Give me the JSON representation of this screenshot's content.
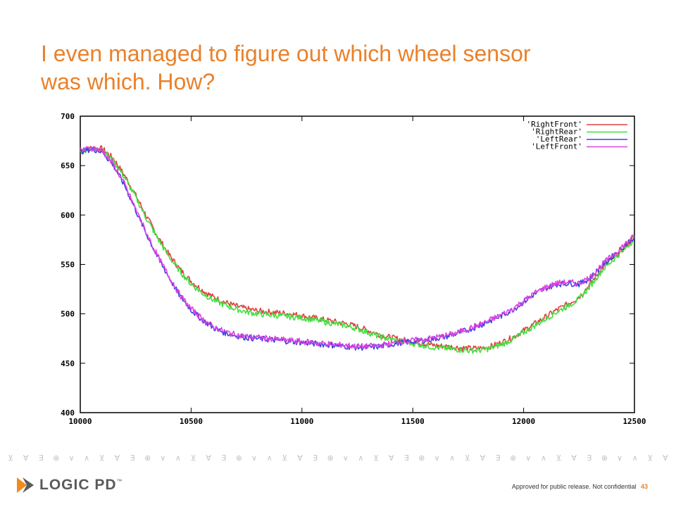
{
  "slide": {
    "title_lines": [
      "I even managed to figure out which wheel sensor",
      "was which. How?"
    ],
    "footer_text": "Approved for public release. Not confidential",
    "page_number": "43",
    "logo_text": "LOGIC PD",
    "logo_tm": "™",
    "symbols": [
      "⊻",
      "∀",
      "∃",
      "⊕",
      "∨",
      "∧",
      "⊻",
      "∀",
      "∃",
      "⊕",
      "∨",
      "∧",
      "⊻",
      "∀",
      "∃",
      "⊕",
      "∨",
      "∧",
      "⊻",
      "∀",
      "∃",
      "⊕",
      "∨",
      "∧",
      "⊻",
      "∀",
      "∃",
      "⊕",
      "∨",
      "∧",
      "⊻",
      "∀",
      "∃",
      "⊕",
      "∨",
      "∧",
      "⊻",
      "∀",
      "∃",
      "⊕",
      "∨",
      "∧",
      "⊻",
      "∀"
    ],
    "colors": {
      "accent": "#e9812b",
      "logo_grey": "#5a5a5a"
    }
  },
  "chart_data": {
    "type": "line",
    "title": "",
    "xlabel": "",
    "ylabel": "",
    "xlim": [
      10000,
      12500
    ],
    "ylim": [
      400,
      700
    ],
    "xticks": [
      10000,
      10500,
      11000,
      11500,
      12000,
      12500
    ],
    "yticks": [
      400,
      450,
      500,
      550,
      600,
      650,
      700
    ],
    "legend_position": "top-right",
    "series": [
      {
        "name": "'RightFront'",
        "color": "#e04040",
        "x": [
          10000,
          10050,
          10100,
          10150,
          10200,
          10250,
          10300,
          10350,
          10400,
          10450,
          10500,
          10550,
          10600,
          10650,
          10700,
          10750,
          10800,
          10850,
          10900,
          10950,
          11000,
          11050,
          11100,
          11150,
          11200,
          11250,
          11300,
          11350,
          11400,
          11450,
          11500,
          11550,
          11600,
          11650,
          11700,
          11750,
          11800,
          11850,
          11900,
          11950,
          12000,
          12050,
          12100,
          12150,
          12200,
          12250,
          12300,
          12350,
          12400,
          12450,
          12500
        ],
        "y": [
          665,
          668,
          667,
          657,
          640,
          620,
          598,
          578,
          560,
          545,
          533,
          524,
          517,
          512,
          508,
          505,
          503,
          502,
          501,
          500,
          498,
          496,
          494,
          492,
          490,
          487,
          483,
          479,
          476,
          474,
          472,
          470,
          468,
          467,
          466,
          465,
          465,
          467,
          471,
          476,
          483,
          490,
          497,
          504,
          510,
          517,
          530,
          545,
          556,
          566,
          578
        ]
      },
      {
        "name": "'RightRear'",
        "color": "#40e040",
        "x": [
          10000,
          10050,
          10100,
          10150,
          10200,
          10250,
          10300,
          10350,
          10400,
          10450,
          10500,
          10550,
          10600,
          10650,
          10700,
          10750,
          10800,
          10850,
          10900,
          10950,
          11000,
          11050,
          11100,
          11150,
          11200,
          11250,
          11300,
          11350,
          11400,
          11450,
          11500,
          11550,
          11600,
          11650,
          11700,
          11750,
          11800,
          11850,
          11900,
          11950,
          12000,
          12050,
          12100,
          12150,
          12200,
          12250,
          12300,
          12350,
          12400,
          12450,
          12500
        ],
        "y": [
          664,
          667,
          666,
          655,
          638,
          618,
          596,
          576,
          558,
          543,
          530,
          521,
          514,
          509,
          505,
          502,
          500,
          499,
          498,
          497,
          496,
          494,
          492,
          490,
          488,
          485,
          481,
          477,
          474,
          472,
          470,
          468,
          466,
          465,
          464,
          463,
          463,
          465,
          469,
          474,
          481,
          488,
          495,
          502,
          508,
          515,
          528,
          543,
          554,
          564,
          576
        ]
      },
      {
        "name": "'LeftRear'",
        "color": "#4040e0",
        "x": [
          10000,
          10050,
          10100,
          10150,
          10200,
          10250,
          10300,
          10350,
          10400,
          10450,
          10500,
          10550,
          10600,
          10650,
          10700,
          10750,
          10800,
          10850,
          10900,
          10950,
          11000,
          11050,
          11100,
          11150,
          11200,
          11250,
          11300,
          11350,
          11400,
          11450,
          11500,
          11550,
          11600,
          11650,
          11700,
          11750,
          11800,
          11850,
          11900,
          11950,
          12000,
          12050,
          12100,
          12150,
          12200,
          12250,
          12300,
          12350,
          12400,
          12450,
          12500
        ],
        "y": [
          664,
          667,
          664,
          650,
          630,
          605,
          580,
          557,
          537,
          518,
          504,
          494,
          486,
          481,
          478,
          476,
          475,
          474,
          473,
          472,
          471,
          470,
          469,
          468,
          467,
          466,
          466,
          467,
          469,
          471,
          472,
          473,
          475,
          477,
          480,
          484,
          488,
          493,
          498,
          504,
          512,
          520,
          526,
          530,
          531,
          530,
          536,
          548,
          558,
          568,
          578
        ]
      },
      {
        "name": "'LeftFront'",
        "color": "#e040e0",
        "x": [
          10000,
          10050,
          10100,
          10150,
          10200,
          10250,
          10300,
          10350,
          10400,
          10450,
          10500,
          10550,
          10600,
          10650,
          10700,
          10750,
          10800,
          10850,
          10900,
          10950,
          11000,
          11050,
          11100,
          11150,
          11200,
          11250,
          11300,
          11350,
          11400,
          11450,
          11500,
          11550,
          11600,
          11650,
          11700,
          11750,
          11800,
          11850,
          11900,
          11950,
          12000,
          12050,
          12100,
          12150,
          12200,
          12250,
          12300,
          12350,
          12400,
          12450,
          12500
        ],
        "y": [
          665,
          668,
          665,
          651,
          631,
          606,
          581,
          558,
          538,
          519,
          505,
          495,
          487,
          482,
          479,
          477,
          476,
          475,
          474,
          473,
          472,
          471,
          470,
          469,
          468,
          467,
          467,
          468,
          470,
          472,
          473,
          474,
          476,
          478,
          481,
          485,
          489,
          494,
          499,
          505,
          513,
          521,
          527,
          531,
          532,
          531,
          537,
          549,
          559,
          569,
          579
        ]
      }
    ]
  }
}
